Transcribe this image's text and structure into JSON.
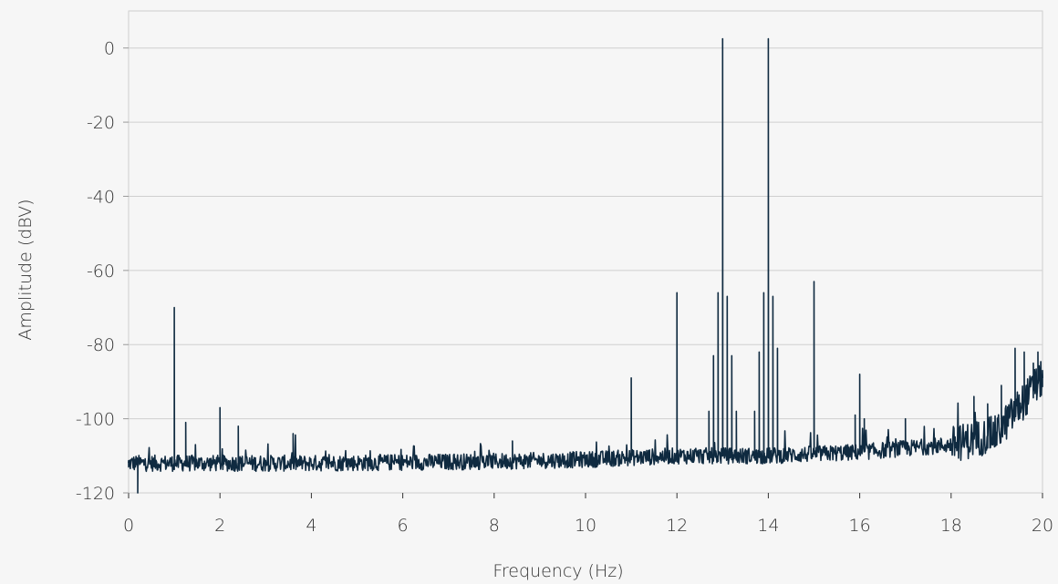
{
  "chart_data": {
    "type": "line",
    "title": "",
    "xlabel": "Frequency (Hz)",
    "ylabel": "Amplitude (dBV)",
    "xlim": [
      0,
      20
    ],
    "ylim": [
      -120,
      10
    ],
    "x_ticks": [
      0,
      2,
      4,
      6,
      8,
      10,
      12,
      14,
      16,
      18,
      20
    ],
    "x_tick_labels": [
      "0",
      "2",
      "4",
      "6",
      "8",
      "10",
      "12",
      "14",
      "16",
      "18",
      "20"
    ],
    "y_ticks": [
      0,
      -20,
      -40,
      -60,
      -80,
      -100,
      -120
    ],
    "y_tick_labels": [
      "0",
      "-20",
      "-40",
      "-60",
      "-80",
      "-100",
      "-120"
    ],
    "grid": {
      "horizontal": true,
      "vertical": false
    },
    "line_color": "#0f2a40",
    "noise_floor": [
      [
        0,
        -112
      ],
      [
        4,
        -112
      ],
      [
        8,
        -111.5
      ],
      [
        10,
        -111
      ],
      [
        12,
        -110
      ],
      [
        14,
        -110
      ],
      [
        16,
        -109
      ],
      [
        18,
        -107
      ],
      [
        19,
        -104
      ],
      [
        20,
        -89
      ]
    ],
    "peaks": [
      {
        "x": 0.0,
        "y": -113
      },
      {
        "x": 0.2,
        "y": -120
      },
      {
        "x": 1.0,
        "y": -70
      },
      {
        "x": 1.25,
        "y": -101
      },
      {
        "x": 2.0,
        "y": -97
      },
      {
        "x": 2.4,
        "y": -102
      },
      {
        "x": 3.6,
        "y": -104
      },
      {
        "x": 8.4,
        "y": -106
      },
      {
        "x": 11.0,
        "y": -89
      },
      {
        "x": 12.0,
        "y": -66
      },
      {
        "x": 12.7,
        "y": -98
      },
      {
        "x": 12.8,
        "y": -83
      },
      {
        "x": 12.9,
        "y": -66
      },
      {
        "x": 13.0,
        "y": 2.5
      },
      {
        "x": 13.1,
        "y": -67
      },
      {
        "x": 13.2,
        "y": -83
      },
      {
        "x": 13.3,
        "y": -98
      },
      {
        "x": 13.7,
        "y": -98
      },
      {
        "x": 13.8,
        "y": -82
      },
      {
        "x": 13.9,
        "y": -66
      },
      {
        "x": 14.0,
        "y": 2.5
      },
      {
        "x": 14.1,
        "y": -67
      },
      {
        "x": 14.2,
        "y": -81
      },
      {
        "x": 15.0,
        "y": -63
      },
      {
        "x": 15.9,
        "y": -99
      },
      {
        "x": 16.0,
        "y": -88
      },
      {
        "x": 16.1,
        "y": -100
      },
      {
        "x": 17.0,
        "y": -100
      },
      {
        "x": 18.5,
        "y": -94
      },
      {
        "x": 18.8,
        "y": -96
      },
      {
        "x": 19.1,
        "y": -91
      },
      {
        "x": 19.4,
        "y": -81
      },
      {
        "x": 19.6,
        "y": -82
      },
      {
        "x": 19.8,
        "y": -85
      },
      {
        "x": 19.9,
        "y": -82
      },
      {
        "x": 20.0,
        "y": -87
      }
    ]
  }
}
